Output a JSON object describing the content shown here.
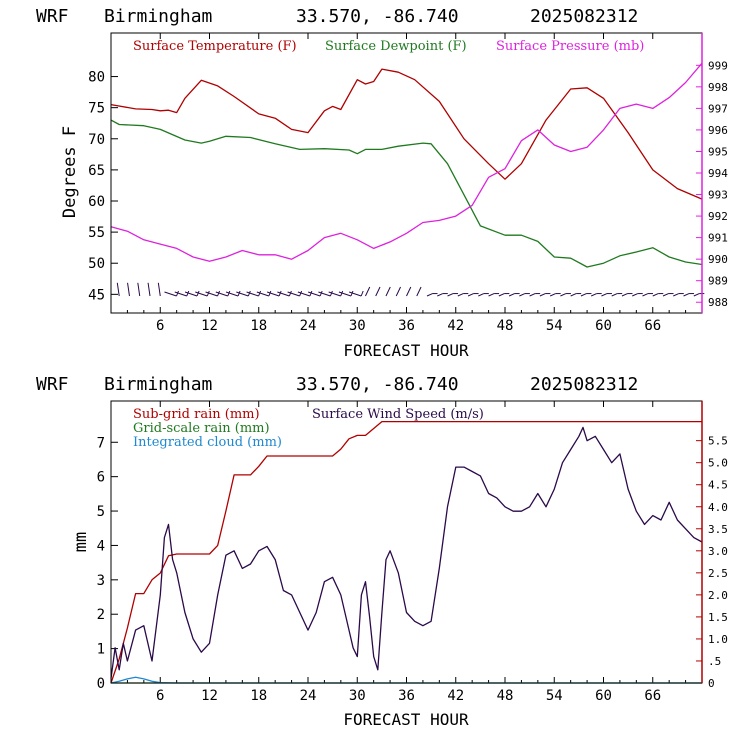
{
  "chart_data": [
    {
      "type": "line",
      "header": {
        "model": "WRF",
        "station": "Birmingham",
        "coords": "33.570, -86.740",
        "init": "2025082312"
      },
      "xlabel": "FORECAST HOUR",
      "ylabel": "Degrees F",
      "xlim": [
        0,
        72
      ],
      "ylim": [
        42,
        87
      ],
      "xticks": [
        6,
        12,
        18,
        24,
        30,
        36,
        42,
        48,
        54,
        60,
        66
      ],
      "yticks": [
        45,
        50,
        55,
        60,
        65,
        70,
        75,
        80
      ],
      "ylim_right": [
        987.5,
        1000.5
      ],
      "yticks_right": [
        988,
        989,
        990,
        991,
        992,
        993,
        994,
        995,
        996,
        997,
        998,
        999
      ],
      "legend_placement": "top",
      "colors": {
        "temperature": "#b00000",
        "dewpoint": "#1f7a1f",
        "pressure": "#dd22dd",
        "barbs": "#2a0a4a",
        "axis_right": "#dd22dd"
      },
      "series": [
        {
          "name": "Surface Temperature (F)",
          "axis": "left",
          "color": "#b00000",
          "x": [
            0,
            3,
            5,
            6,
            7,
            8,
            9,
            11,
            13,
            15,
            18,
            20,
            22,
            24,
            26,
            27,
            28,
            30,
            31,
            32,
            33,
            35,
            37,
            40,
            43,
            46,
            48,
            50,
            53,
            56,
            58,
            60,
            63,
            66,
            69,
            72
          ],
          "y": [
            75.5,
            74.8,
            74.7,
            74.5,
            74.6,
            74.2,
            76.5,
            79.4,
            78.5,
            76.8,
            74.0,
            73.3,
            71.5,
            71.0,
            74.5,
            75.2,
            74.7,
            79.5,
            78.8,
            79.2,
            81.2,
            80.7,
            79.5,
            76.0,
            70.0,
            66.0,
            63.5,
            66.0,
            73.0,
            78.0,
            78.2,
            76.5,
            71.0,
            65.0,
            62.0,
            60.3
          ]
        },
        {
          "name": "Surface Dewpoint (F)",
          "axis": "left",
          "color": "#1f7a1f",
          "x": [
            0,
            1,
            4,
            6,
            9,
            11,
            12,
            14,
            17,
            20,
            23,
            26,
            29,
            30,
            31,
            33,
            35,
            38,
            39,
            41,
            43,
            45,
            48,
            50,
            52,
            54,
            56,
            58,
            60,
            62,
            64,
            66,
            68,
            70,
            72
          ],
          "y": [
            73.0,
            72.3,
            72.1,
            71.5,
            69.8,
            69.3,
            69.6,
            70.4,
            70.2,
            69.2,
            68.3,
            68.4,
            68.2,
            67.6,
            68.3,
            68.3,
            68.8,
            69.3,
            69.2,
            66.0,
            61.0,
            56.0,
            54.5,
            54.5,
            53.5,
            51.0,
            50.8,
            49.4,
            50.0,
            51.2,
            51.8,
            52.5,
            51.0,
            50.2,
            49.8
          ]
        },
        {
          "name": "Surface Pressure (mb)",
          "axis": "right",
          "color": "#dd22dd",
          "x": [
            0,
            2,
            4,
            6,
            8,
            10,
            12,
            14,
            16,
            18,
            20,
            22,
            24,
            26,
            28,
            30,
            32,
            34,
            36,
            38,
            40,
            42,
            44,
            46,
            48,
            50,
            52,
            54,
            56,
            58,
            60,
            62,
            64,
            66,
            68,
            70,
            72
          ],
          "y": [
            991.5,
            991.3,
            990.9,
            990.7,
            990.5,
            990.1,
            989.9,
            990.1,
            990.4,
            990.2,
            990.2,
            990.0,
            990.4,
            991.0,
            991.2,
            990.9,
            990.5,
            990.8,
            991.2,
            991.7,
            991.8,
            992.0,
            992.5,
            993.8,
            994.2,
            995.5,
            996.0,
            995.3,
            995.0,
            995.2,
            996.0,
            997.0,
            997.2,
            997.0,
            997.5,
            998.2,
            999.1
          ]
        }
      ]
    },
    {
      "type": "line",
      "header": {
        "model": "WRF",
        "station": "Birmingham",
        "coords": "33.570, -86.740",
        "init": "2025082312"
      },
      "xlabel": "FORECAST HOUR",
      "ylabel": "mm",
      "xlim": [
        0,
        72
      ],
      "ylim": [
        0,
        8.2
      ],
      "xticks": [
        6,
        12,
        18,
        24,
        30,
        36,
        42,
        48,
        54,
        60,
        66
      ],
      "yticks": [
        0,
        1,
        2,
        3,
        4,
        5,
        6,
        7
      ],
      "ylim_right": [
        0,
        6.4
      ],
      "yticks_right": [
        0,
        0.5,
        1.0,
        1.5,
        2.0,
        2.5,
        3.0,
        3.5,
        4.0,
        4.5,
        5.0,
        5.5
      ],
      "yticks_right_labels": [
        "0",
        ".5",
        "1.0",
        "1.5",
        "2.0",
        "2.5",
        "3.0",
        "3.5",
        "4.0",
        "4.5",
        "5.0",
        "5.5"
      ],
      "legend_placement": "top-left",
      "colors": {
        "subgrid": "#b00000",
        "gridscale": "#1f7a1f",
        "cloud": "#1e88d0",
        "wind": "#2a0a4a",
        "axis_right": "#b00000"
      },
      "series": [
        {
          "name": "Sub-grid rain (mm)",
          "axis": "left",
          "color": "#b00000",
          "x": [
            0,
            1,
            2,
            3,
            4,
            5,
            6,
            7,
            8,
            12,
            13,
            14,
            15,
            16,
            17,
            18,
            19,
            20,
            27,
            28,
            29,
            30,
            31,
            32,
            33,
            34,
            35,
            72
          ],
          "y": [
            0,
            0.7,
            1.6,
            2.6,
            2.6,
            3.0,
            3.2,
            3.7,
            3.75,
            3.75,
            4.0,
            5.0,
            6.05,
            6.05,
            6.05,
            6.3,
            6.6,
            6.6,
            6.6,
            6.8,
            7.1,
            7.2,
            7.2,
            7.4,
            7.6,
            7.6,
            7.6,
            7.6
          ]
        },
        {
          "name": "Grid-scale rain (mm)",
          "axis": "left",
          "color": "#1f7a1f",
          "x": [
            0,
            72
          ],
          "y": [
            0,
            0
          ]
        },
        {
          "name": "Integrated cloud (mm)",
          "axis": "left",
          "color": "#1e88d0",
          "x": [
            0,
            1,
            2,
            3,
            4,
            5,
            6,
            8,
            72
          ],
          "y": [
            0,
            0.05,
            0.12,
            0.17,
            0.12,
            0.05,
            0.01,
            0,
            0
          ]
        },
        {
          "name": "Surface Wind Speed (m/s)",
          "axis": "right",
          "color": "#2a0a4a",
          "x": [
            0,
            0.5,
            1,
            1.5,
            2,
            3,
            4,
            5,
            6,
            6.5,
            7,
            7.5,
            8,
            9,
            10,
            11,
            12,
            13,
            14,
            15,
            16,
            17,
            18,
            19,
            20,
            21,
            22,
            23,
            24,
            25,
            26,
            27,
            28,
            29,
            29.5,
            30,
            30.5,
            31,
            31.5,
            32,
            32.5,
            33,
            33.5,
            34,
            35,
            36,
            37,
            38,
            39,
            40,
            41,
            42,
            43,
            44,
            45,
            46,
            47,
            48,
            49,
            50,
            51,
            52,
            53,
            54,
            55,
            56,
            57,
            57.5,
            58,
            59,
            60,
            61,
            62,
            63,
            64,
            65,
            66,
            67,
            68,
            69,
            70,
            71,
            72
          ],
          "y": [
            0.1,
            0.8,
            0.3,
            0.9,
            0.5,
            1.2,
            1.3,
            0.5,
            2.0,
            3.3,
            3.6,
            2.8,
            2.5,
            1.6,
            1.0,
            0.7,
            0.9,
            2.0,
            2.9,
            3.0,
            2.6,
            2.7,
            3.0,
            3.1,
            2.8,
            2.1,
            2.0,
            1.6,
            1.2,
            1.6,
            2.3,
            2.4,
            2.0,
            1.2,
            0.8,
            0.6,
            2.0,
            2.3,
            1.5,
            0.6,
            0.3,
            1.6,
            2.8,
            3.0,
            2.5,
            1.6,
            1.4,
            1.3,
            1.4,
            2.6,
            4.0,
            4.9,
            4.9,
            4.8,
            4.7,
            4.3,
            4.2,
            4.0,
            3.9,
            3.9,
            4.0,
            4.3,
            4.0,
            4.4,
            5.0,
            5.3,
            5.6,
            5.8,
            5.5,
            5.6,
            5.3,
            5.0,
            5.2,
            4.4,
            3.9,
            3.6,
            3.8,
            3.7,
            4.1,
            3.7,
            3.5,
            3.3,
            3.2
          ]
        }
      ]
    }
  ]
}
